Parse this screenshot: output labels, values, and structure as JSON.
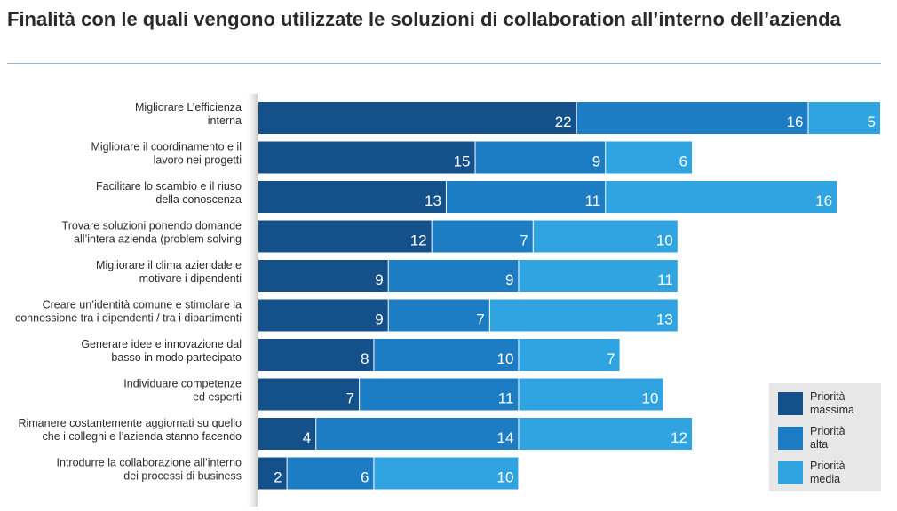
{
  "chart_data": {
    "type": "bar",
    "orientation": "horizontal",
    "stacked": true,
    "title": "Finalità con le quali vengono utilizzate le soluzioni di collaboration all’interno dell’azienda",
    "categories": [
      [
        "Migliorare L’efficienza",
        "interna"
      ],
      [
        "Migliorare il coordinamento e il",
        "lavoro nei progetti"
      ],
      [
        "Facilitare lo scambio e il riuso",
        "della conoscenza"
      ],
      [
        "Trovare soluzioni ponendo domande",
        "all’intera azienda (problem solving"
      ],
      [
        "Migliorare il clima aziendale e",
        "motivare i dipendenti"
      ],
      [
        "Creare un’identità comune e stimolare la",
        "connessione tra i dipendenti / tra i dipartimenti"
      ],
      [
        "Generare idee e innovazione dal",
        "basso in modo partecipato"
      ],
      [
        "Individuare competenze",
        "ed esperti"
      ],
      [
        "Rimanere costantemente aggiornati su quello",
        "che i colleghi e l’azienda stanno facendo"
      ],
      [
        "Introdurre la collaborazione all’interno",
        "dei processi di business"
      ]
    ],
    "series": [
      {
        "name": "Priorità massima",
        "legend": [
          "Priorità",
          "massima"
        ],
        "color": "#14508a",
        "values": [
          22,
          15,
          13,
          12,
          9,
          9,
          8,
          7,
          4,
          2
        ]
      },
      {
        "name": "Priorità alta",
        "legend": [
          "Priorità",
          "alta"
        ],
        "color": "#1c7cc4",
        "values": [
          16,
          9,
          11,
          7,
          9,
          7,
          10,
          11,
          14,
          6
        ]
      },
      {
        "name": "Priorità media",
        "legend": [
          "Priorità",
          "media"
        ],
        "color": "#2fa4e0",
        "values": [
          5,
          6,
          16,
          10,
          11,
          13,
          7,
          10,
          12,
          10
        ]
      }
    ],
    "xlim": [
      0,
      43
    ],
    "xlabel": "",
    "ylabel": "",
    "grid": false,
    "legend_position": "bottom-right"
  }
}
